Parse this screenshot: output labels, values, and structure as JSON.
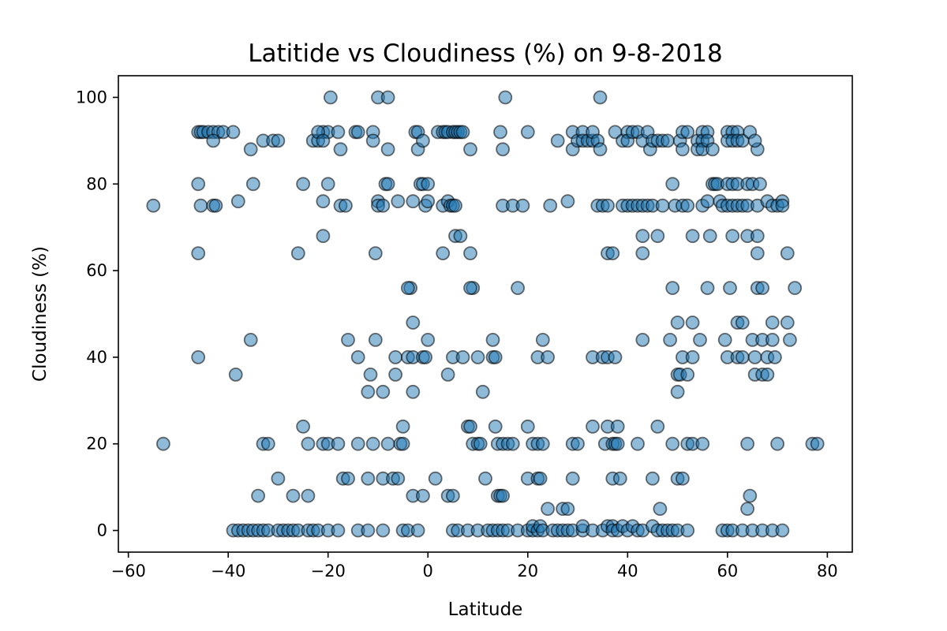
{
  "chart_data": {
    "type": "scatter",
    "title": "Latitide vs Cloudiness (%) on 9-8-2018",
    "xlabel": "Latitude",
    "ylabel": "Cloudiness (%)",
    "xlim": [
      -62,
      85
    ],
    "ylim": [
      -5,
      105
    ],
    "xticks": [
      -60,
      -40,
      -20,
      0,
      20,
      40,
      60,
      80
    ],
    "yticks": [
      0,
      20,
      40,
      60,
      80,
      100
    ],
    "grid": false,
    "colors": {
      "marker_fill": "#1f77b4",
      "marker_edge": "#000000",
      "marker_opacity": 0.5
    },
    "points": [
      [
        -55,
        75
      ],
      [
        -53,
        20
      ],
      [
        -46,
        92
      ],
      [
        -45.5,
        92
      ],
      [
        -45,
        92
      ],
      [
        -44,
        92
      ],
      [
        -43,
        92
      ],
      [
        -42,
        92
      ],
      [
        -41,
        92
      ],
      [
        -39,
        92
      ],
      [
        -46,
        80
      ],
      [
        -46,
        64
      ],
      [
        -45.5,
        75
      ],
      [
        -43,
        75
      ],
      [
        -42.5,
        75
      ],
      [
        -43,
        90
      ],
      [
        -46,
        40
      ],
      [
        -38,
        76
      ],
      [
        -35,
        80
      ],
      [
        -35.5,
        88
      ],
      [
        -35.5,
        44
      ],
      [
        -38.5,
        36
      ],
      [
        -33,
        90
      ],
      [
        -31,
        90
      ],
      [
        -30,
        90
      ],
      [
        -26,
        64
      ],
      [
        -25,
        80
      ],
      [
        -25,
        24
      ],
      [
        -24,
        20
      ],
      [
        -24,
        8
      ],
      [
        -27,
        8
      ],
      [
        -30,
        12
      ],
      [
        -33,
        20
      ],
      [
        -32,
        20
      ],
      [
        -34,
        8
      ],
      [
        -23,
        90
      ],
      [
        -22,
        90
      ],
      [
        -21,
        92
      ],
      [
        -20,
        92
      ],
      [
        -22,
        92
      ],
      [
        -21,
        90
      ],
      [
        -20,
        80
      ],
      [
        -21,
        76
      ],
      [
        -21,
        68
      ],
      [
        -21,
        20
      ],
      [
        -20,
        20
      ],
      [
        -18,
        20
      ],
      [
        -19.5,
        100
      ],
      [
        -18,
        92
      ],
      [
        -17.5,
        88
      ],
      [
        -17.5,
        75
      ],
      [
        -16.5,
        75
      ],
      [
        -14.5,
        92
      ],
      [
        -14,
        92
      ],
      [
        -16,
        44
      ],
      [
        -14,
        40
      ],
      [
        -17,
        12
      ],
      [
        -16,
        12
      ],
      [
        -14,
        20
      ],
      [
        -12,
        12
      ],
      [
        -11,
        20
      ],
      [
        -12,
        32
      ],
      [
        -11.5,
        36
      ],
      [
        -11,
        92
      ],
      [
        -11,
        90
      ],
      [
        -10,
        100
      ],
      [
        -8,
        100
      ],
      [
        -10.5,
        64
      ],
      [
        -10,
        76
      ],
      [
        -10,
        75
      ],
      [
        -9,
        75
      ],
      [
        -8.5,
        80
      ],
      [
        -8,
        80
      ],
      [
        -8,
        88
      ],
      [
        -10.5,
        44
      ],
      [
        -9,
        32
      ],
      [
        -9,
        12
      ],
      [
        -7,
        12
      ],
      [
        -6,
        12
      ],
      [
        -8,
        20
      ],
      [
        -6,
        76
      ],
      [
        -6.5,
        36
      ],
      [
        -6.5,
        40
      ],
      [
        -5.5,
        20
      ],
      [
        -5,
        20
      ],
      [
        -5,
        24
      ],
      [
        -4,
        40
      ],
      [
        -3.5,
        56
      ],
      [
        -3,
        48
      ],
      [
        -3,
        32
      ],
      [
        -3,
        8
      ],
      [
        -3,
        40
      ],
      [
        -4,
        56
      ],
      [
        -2.5,
        92
      ],
      [
        -2,
        92
      ],
      [
        -2,
        88
      ],
      [
        -3,
        76
      ],
      [
        -1.5,
        80
      ],
      [
        -1,
        80
      ],
      [
        -1,
        90
      ],
      [
        -0.5,
        75
      ],
      [
        0,
        76
      ],
      [
        0,
        80
      ],
      [
        -1,
        40
      ],
      [
        -0.5,
        40
      ],
      [
        0,
        44
      ],
      [
        -1,
        8
      ],
      [
        1.5,
        12
      ],
      [
        2,
        92
      ],
      [
        3,
        92
      ],
      [
        3.5,
        92
      ],
      [
        4,
        92
      ],
      [
        5,
        92
      ],
      [
        5.5,
        92
      ],
      [
        6,
        92
      ],
      [
        6.5,
        92
      ],
      [
        7,
        92
      ],
      [
        3,
        75
      ],
      [
        4,
        76
      ],
      [
        4.5,
        75
      ],
      [
        5,
        75
      ],
      [
        5.5,
        75
      ],
      [
        5.5,
        68
      ],
      [
        6.5,
        68
      ],
      [
        3,
        64
      ],
      [
        4,
        36
      ],
      [
        5,
        40
      ],
      [
        7,
        40
      ],
      [
        4,
        8
      ],
      [
        5,
        8
      ],
      [
        8,
        24
      ],
      [
        8.5,
        24
      ],
      [
        9,
        56
      ],
      [
        8.5,
        56
      ],
      [
        8.5,
        64
      ],
      [
        8.5,
        88
      ],
      [
        9,
        20
      ],
      [
        10,
        20
      ],
      [
        10,
        40
      ],
      [
        11,
        32
      ],
      [
        11.5,
        12
      ],
      [
        10.5,
        20
      ],
      [
        13,
        44
      ],
      [
        13,
        40
      ],
      [
        13.5,
        40
      ],
      [
        14,
        20
      ],
      [
        15,
        20
      ],
      [
        13.5,
        24
      ],
      [
        14,
        8
      ],
      [
        14.5,
        8
      ],
      [
        15,
        8
      ],
      [
        14.5,
        92
      ],
      [
        15,
        88
      ],
      [
        15,
        75
      ],
      [
        15.5,
        100
      ],
      [
        16,
        20
      ],
      [
        17,
        20
      ],
      [
        17,
        75
      ],
      [
        18,
        56
      ],
      [
        19,
        75
      ],
      [
        20,
        24
      ],
      [
        20,
        92
      ],
      [
        20,
        12
      ],
      [
        21,
        20
      ],
      [
        22,
        20
      ],
      [
        23,
        20
      ],
      [
        22,
        40
      ],
      [
        23,
        44
      ],
      [
        22,
        12
      ],
      [
        22.5,
        12
      ],
      [
        24,
        5
      ],
      [
        24.5,
        75
      ],
      [
        24,
        40
      ],
      [
        26,
        90
      ],
      [
        27,
        5
      ],
      [
        28,
        5
      ],
      [
        28,
        76
      ],
      [
        29,
        88
      ],
      [
        29,
        92
      ],
      [
        29,
        20
      ],
      [
        29,
        12
      ],
      [
        30,
        90
      ],
      [
        30,
        20
      ],
      [
        31,
        92
      ],
      [
        31,
        90
      ],
      [
        32,
        90
      ],
      [
        33,
        90
      ],
      [
        33,
        92
      ],
      [
        34,
        90
      ],
      [
        34.5,
        88
      ],
      [
        34.5,
        100
      ],
      [
        33,
        40
      ],
      [
        35,
        40
      ],
      [
        36,
        40
      ],
      [
        33,
        24
      ],
      [
        34,
        75
      ],
      [
        35,
        75
      ],
      [
        36,
        75
      ],
      [
        36,
        64
      ],
      [
        37,
        64
      ],
      [
        35.5,
        20
      ],
      [
        36,
        24
      ],
      [
        37,
        20
      ],
      [
        37.5,
        20
      ],
      [
        38,
        20
      ],
      [
        38,
        24
      ],
      [
        37,
        12
      ],
      [
        38.5,
        12
      ],
      [
        37.5,
        40
      ],
      [
        37.5,
        92
      ],
      [
        39,
        90
      ],
      [
        40,
        92
      ],
      [
        40,
        90
      ],
      [
        41,
        92
      ],
      [
        42,
        92
      ],
      [
        43,
        90
      ],
      [
        44,
        92
      ],
      [
        44.5,
        88
      ],
      [
        45,
        90
      ],
      [
        46,
        90
      ],
      [
        47,
        90
      ],
      [
        48,
        90
      ],
      [
        39,
        75
      ],
      [
        40,
        75
      ],
      [
        41,
        75
      ],
      [
        42,
        75
      ],
      [
        43,
        75
      ],
      [
        44,
        75
      ],
      [
        45,
        75
      ],
      [
        47,
        75
      ],
      [
        42,
        20
      ],
      [
        43,
        68
      ],
      [
        43,
        64
      ],
      [
        43,
        44
      ],
      [
        45,
        12
      ],
      [
        46.5,
        5
      ],
      [
        46,
        68
      ],
      [
        46,
        24
      ],
      [
        48.5,
        44
      ],
      [
        49,
        80
      ],
      [
        49,
        56
      ],
      [
        49,
        20
      ],
      [
        49.5,
        75
      ],
      [
        50,
        32
      ],
      [
        50,
        48
      ],
      [
        50,
        36
      ],
      [
        50.5,
        36
      ],
      [
        50,
        12
      ],
      [
        51,
        12
      ],
      [
        51,
        40
      ],
      [
        51,
        75
      ],
      [
        50.5,
        90
      ],
      [
        51,
        92
      ],
      [
        51,
        88
      ],
      [
        52,
        92
      ],
      [
        52,
        75
      ],
      [
        52,
        20
      ],
      [
        53,
        20
      ],
      [
        53,
        40
      ],
      [
        53,
        48
      ],
      [
        53,
        68
      ],
      [
        52,
        36
      ],
      [
        54,
        90
      ],
      [
        54,
        88
      ],
      [
        55,
        92
      ],
      [
        55,
        90
      ],
      [
        55,
        88
      ],
      [
        56,
        92
      ],
      [
        56,
        90
      ],
      [
        57,
        88
      ],
      [
        54.5,
        44
      ],
      [
        55,
        20
      ],
      [
        55,
        75
      ],
      [
        56,
        76
      ],
      [
        56,
        56
      ],
      [
        56.5,
        68
      ],
      [
        57,
        80
      ],
      [
        57.5,
        80
      ],
      [
        58,
        80
      ],
      [
        58.5,
        76
      ],
      [
        59,
        75
      ],
      [
        59.5,
        44
      ],
      [
        60,
        92
      ],
      [
        61,
        92
      ],
      [
        62,
        92
      ],
      [
        60,
        90
      ],
      [
        61,
        90
      ],
      [
        62,
        90
      ],
      [
        63,
        90
      ],
      [
        60,
        80
      ],
      [
        61,
        80
      ],
      [
        62,
        80
      ],
      [
        60,
        75
      ],
      [
        61,
        75
      ],
      [
        62,
        75
      ],
      [
        63,
        75
      ],
      [
        64,
        75
      ],
      [
        60.5,
        56
      ],
      [
        60,
        40
      ],
      [
        61,
        68
      ],
      [
        62,
        48
      ],
      [
        62,
        40
      ],
      [
        63,
        40
      ],
      [
        63,
        48
      ],
      [
        64,
        68
      ],
      [
        64,
        80
      ],
      [
        64,
        20
      ],
      [
        64.5,
        8
      ],
      [
        64,
        5
      ],
      [
        64.5,
        92
      ],
      [
        65,
        80
      ],
      [
        65,
        44
      ],
      [
        65.5,
        40
      ],
      [
        65.5,
        36
      ],
      [
        66,
        56
      ],
      [
        66,
        64
      ],
      [
        66,
        68
      ],
      [
        66,
        75
      ],
      [
        66.5,
        80
      ],
      [
        67,
        56
      ],
      [
        67,
        44
      ],
      [
        67,
        36
      ],
      [
        66,
        88
      ],
      [
        65.5,
        90
      ],
      [
        68,
        40
      ],
      [
        68,
        36
      ],
      [
        68,
        76
      ],
      [
        69,
        75
      ],
      [
        69,
        44
      ],
      [
        69,
        48
      ],
      [
        69.5,
        40
      ],
      [
        70,
        75
      ],
      [
        70,
        20
      ],
      [
        71,
        76
      ],
      [
        71,
        75
      ],
      [
        72,
        64
      ],
      [
        72,
        48
      ],
      [
        72.5,
        44
      ],
      [
        73.5,
        56
      ],
      [
        77,
        20
      ],
      [
        78,
        20
      ],
      [
        -39,
        0
      ],
      [
        -38,
        0
      ],
      [
        -37,
        0
      ],
      [
        -36,
        0
      ],
      [
        -35,
        0
      ],
      [
        -34,
        0
      ],
      [
        -33,
        0
      ],
      [
        -32,
        0
      ],
      [
        -30,
        0
      ],
      [
        -29,
        0
      ],
      [
        -28,
        0
      ],
      [
        -27,
        0
      ],
      [
        -26,
        0
      ],
      [
        -24,
        0
      ],
      [
        -23,
        0
      ],
      [
        -22,
        0
      ],
      [
        -20,
        0
      ],
      [
        -18,
        0
      ],
      [
        -14,
        0
      ],
      [
        -12,
        0
      ],
      [
        -9,
        0
      ],
      [
        -5,
        0
      ],
      [
        -4,
        0
      ],
      [
        -2,
        0
      ],
      [
        5,
        0
      ],
      [
        6,
        0
      ],
      [
        8,
        0
      ],
      [
        10,
        0
      ],
      [
        12,
        0
      ],
      [
        13,
        0
      ],
      [
        14,
        0
      ],
      [
        15,
        0
      ],
      [
        16,
        0
      ],
      [
        18,
        0
      ],
      [
        20,
        0
      ],
      [
        21,
        0
      ],
      [
        21,
        1
      ],
      [
        22,
        0
      ],
      [
        22.5,
        1
      ],
      [
        23,
        0
      ],
      [
        25,
        0
      ],
      [
        26,
        0
      ],
      [
        27,
        0
      ],
      [
        28,
        0
      ],
      [
        29,
        0
      ],
      [
        31,
        0
      ],
      [
        31,
        1
      ],
      [
        33,
        0
      ],
      [
        35,
        0
      ],
      [
        36,
        1
      ],
      [
        37,
        1
      ],
      [
        37,
        0
      ],
      [
        38,
        0
      ],
      [
        39,
        1
      ],
      [
        40,
        0
      ],
      [
        41,
        1
      ],
      [
        42,
        0
      ],
      [
        43,
        0
      ],
      [
        45,
        1
      ],
      [
        46,
        0
      ],
      [
        47,
        0
      ],
      [
        48,
        0
      ],
      [
        49,
        0
      ],
      [
        50,
        0
      ],
      [
        52,
        0
      ],
      [
        59,
        0
      ],
      [
        60,
        0
      ],
      [
        61,
        0
      ],
      [
        63,
        0
      ],
      [
        65,
        0
      ],
      [
        67,
        0
      ],
      [
        69,
        0
      ],
      [
        71,
        0
      ]
    ]
  }
}
